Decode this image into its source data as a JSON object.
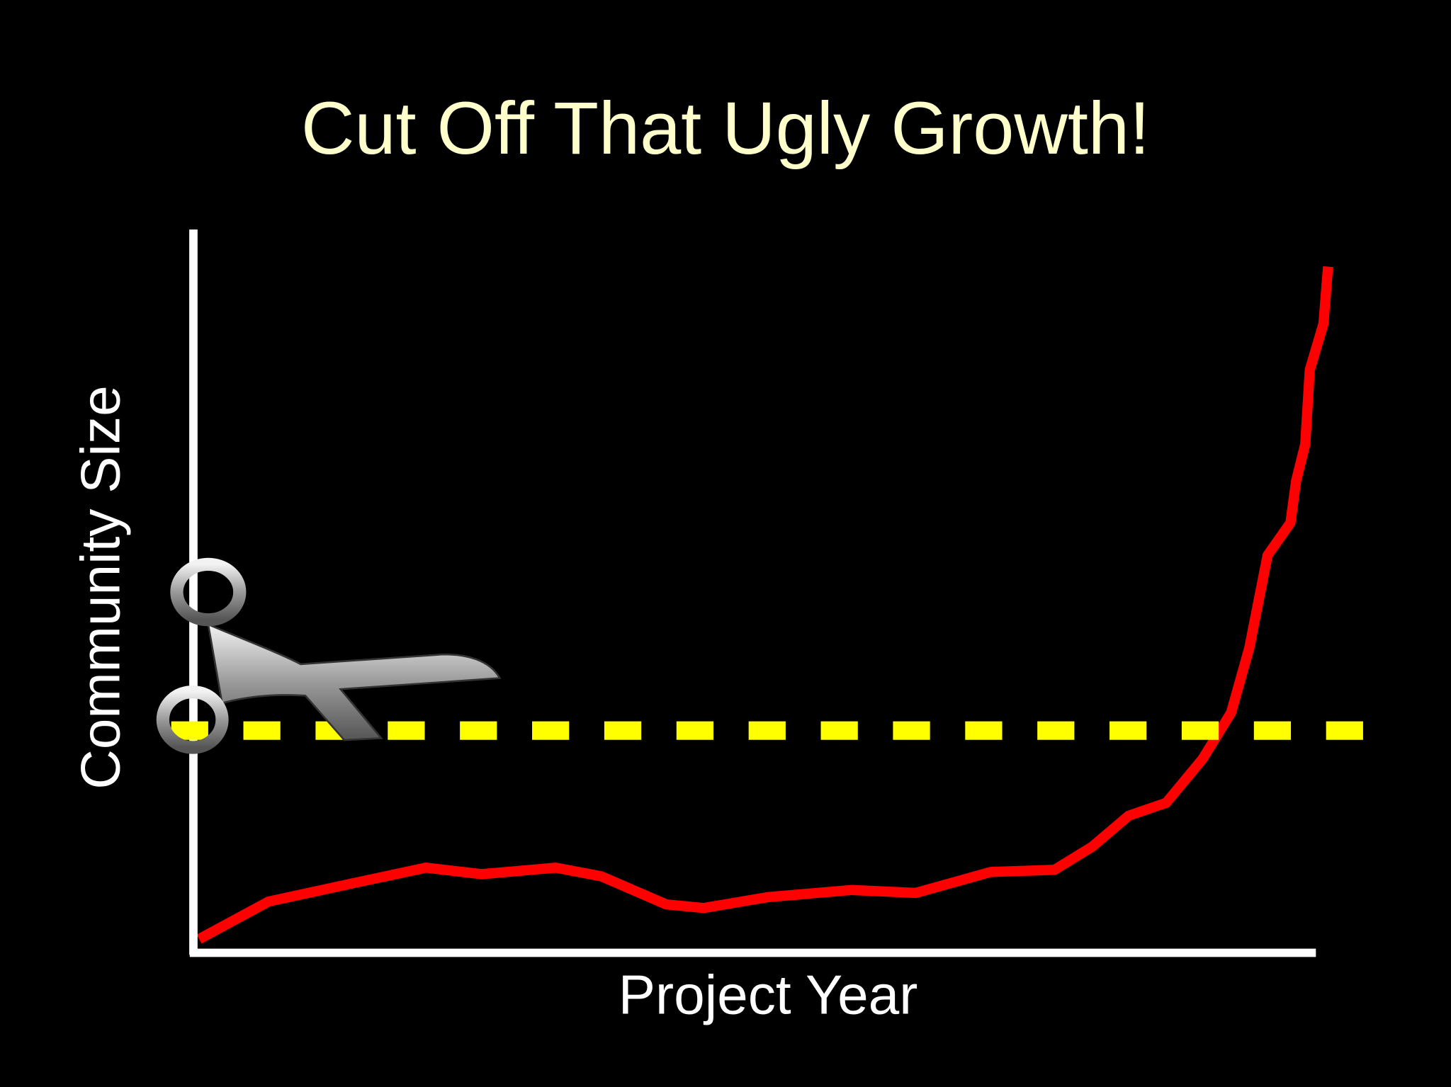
{
  "chart_data": {
    "type": "line",
    "title": "Cut Off That Ugly Growth!",
    "x_label": "Project Year",
    "y_label": "Community Size",
    "x": [
      0.5,
      6.6,
      13.9,
      20.4,
      25.3,
      31.8,
      35.8,
      41.5,
      44.8,
      50.4,
      57.8,
      63.4,
      70.0,
      75.6,
      78.9,
      82.1,
      85.4,
      88.6,
      91.1,
      92.7,
      94.3,
      96.3,
      96.8,
      97.6,
      98.0,
      99.2,
      99.6
    ],
    "values": [
      1.9,
      7.1,
      9.6,
      11.8,
      10.9,
      11.8,
      10.6,
      6.7,
      6.2,
      7.7,
      8.7,
      8.3,
      11.2,
      11.5,
      14.7,
      19.0,
      20.8,
      26.9,
      33.3,
      42.3,
      55.1,
      59.6,
      65.4,
      70.5,
      80.8,
      87.2,
      95.1
    ],
    "color": "#ff0000",
    "threshold": 30.8,
    "threshold_color": "#ffff00",
    "xlim": [
      0,
      100
    ],
    "ylim": [
      0,
      100
    ]
  }
}
